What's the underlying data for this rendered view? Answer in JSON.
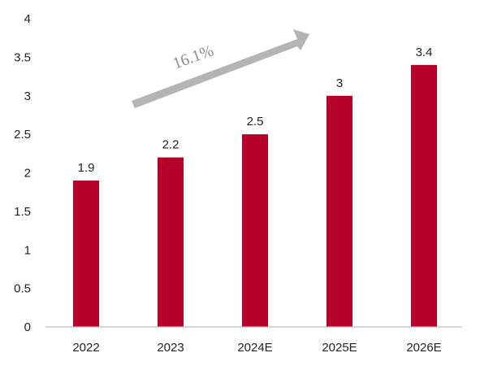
{
  "chart_data": {
    "type": "bar",
    "categories": [
      "2022",
      "2023",
      "2024E",
      "2025E",
      "2026E"
    ],
    "values": [
      1.9,
      2.2,
      2.5,
      3,
      3.4
    ],
    "data_labels": [
      "1.9",
      "2.2",
      "2.5",
      "3",
      "3.4"
    ],
    "title": "",
    "xlabel": "",
    "ylabel": "",
    "ylim": [
      0,
      4
    ],
    "yticks": [
      "0",
      "0.5",
      "1",
      "1.5",
      "2",
      "2.5",
      "3",
      "3.5",
      "4"
    ],
    "grid": false,
    "legend": "none",
    "annotations": [
      {
        "text": "16.1%",
        "type": "growth-arrow"
      }
    ]
  },
  "colors": {
    "bar": "#b5002a",
    "arrow": "#b4b4b4",
    "axis": "#bfbfbf",
    "text": "#222222",
    "growth_text": "#8c8c8c"
  }
}
